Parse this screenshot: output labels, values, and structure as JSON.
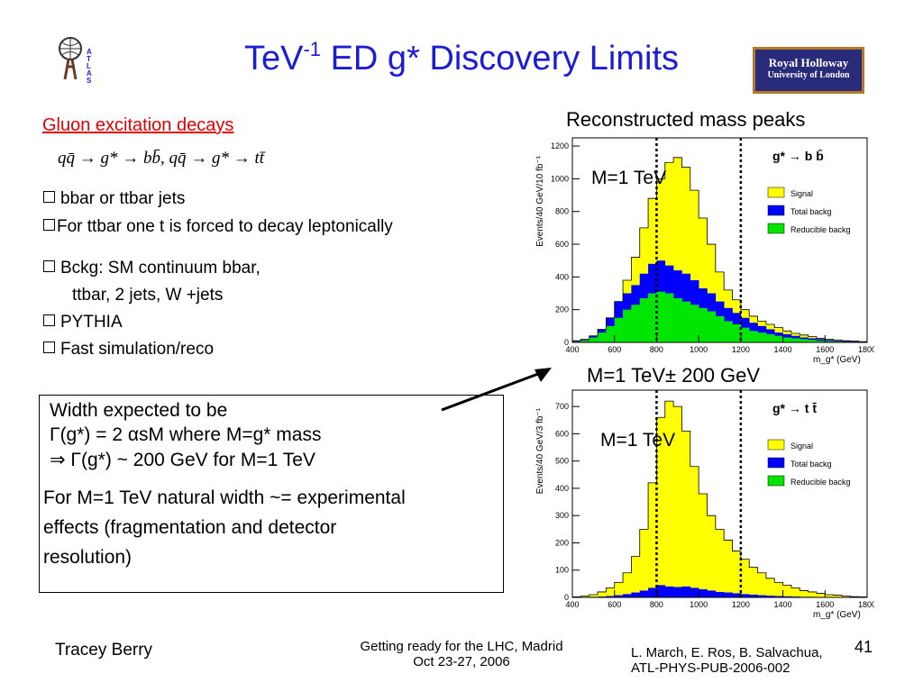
{
  "slide": {
    "title_main": "TeV",
    "title_sup": "-1",
    "title_rest": " ED g* Discovery Limits",
    "subheading": "Gluon excitation decays",
    "formula": "qq̄ → g* → bb̄, qq̄ → g* → tt̄",
    "bullets": [
      "bbar or ttbar jets",
      "For ttbar one t is forced to decay leptonically",
      "Bckg: SM continuum bbar,",
      "ttbar, 2 jets, W +jets",
      "PYTHIA",
      "Fast simulation/reco"
    ],
    "width_box": {
      "line1": "Width expected to be",
      "line2": "Γ(g*) = 2 αsM   where M=g* mass",
      "line3": "⇒ Γ(g*) ~ 200 GeV for M=1 TeV",
      "para": [
        "For M=1 TeV natural width  ~= experimental",
        "effects (fragmentation and detector",
        "resolution)"
      ]
    },
    "captions": {
      "top": "Reconstructed mass peaks",
      "middle": "M=1 TeV± 200 GeV",
      "peak_label": "M=1 TeV"
    },
    "footer": {
      "author": "Tracey Berry",
      "event_line1": "Getting ready for the LHC, Madrid",
      "event_line2": "Oct 23-27, 2006",
      "ref_line1": "L. March, E. Ros, B. Salvachua,",
      "ref_line2": "ATL-PHYS-PUB-2006-002",
      "page": "41"
    },
    "logos": {
      "atlas": "ATLAS",
      "rhul_line1": "Royal Holloway",
      "rhul_line2": "University of London"
    }
  },
  "colors": {
    "title": "#1c1cd6",
    "signal": "#ffff00",
    "total": "#0000ff",
    "reducible": "#00e600",
    "subhead": "#e00000"
  },
  "chart_data": [
    {
      "type": "bar",
      "title": "g* → b b̄",
      "xlabel": "m_g* (GeV)",
      "ylabel": "Events/40 GeV/10 fb⁻¹",
      "xlim": [
        400,
        1800
      ],
      "ylim": [
        0,
        1250
      ],
      "yticks": [
        0,
        200,
        400,
        600,
        800,
        1000,
        1200
      ],
      "xticks": [
        400,
        600,
        800,
        1000,
        1200,
        1400,
        1600,
        1800
      ],
      "bin_width": 40,
      "vlines": [
        800,
        1200
      ],
      "legend": [
        "Signal",
        "Total backg",
        "Reducible backg"
      ],
      "series": [
        {
          "name": "Signal",
          "values": [
            10,
            20,
            40,
            80,
            150,
            250,
            380,
            520,
            700,
            880,
            1000,
            1100,
            1130,
            1070,
            930,
            760,
            600,
            430,
            320,
            260,
            200,
            160,
            130,
            110,
            90,
            70,
            55,
            45,
            35,
            25,
            20,
            15,
            10,
            8,
            5
          ]
        },
        {
          "name": "Total backg",
          "values": [
            10,
            15,
            40,
            80,
            150,
            250,
            300,
            350,
            420,
            480,
            500,
            470,
            440,
            420,
            380,
            330,
            300,
            250,
            210,
            180,
            150,
            120,
            100,
            80,
            60,
            50,
            40,
            30,
            25,
            20,
            15,
            10,
            8,
            5,
            3
          ]
        },
        {
          "name": "Reducible backg",
          "values": [
            5,
            10,
            30,
            60,
            100,
            150,
            200,
            230,
            270,
            300,
            310,
            300,
            270,
            250,
            230,
            210,
            190,
            160,
            130,
            110,
            90,
            70,
            60,
            50,
            40,
            30,
            25,
            20,
            15,
            10,
            8,
            5,
            4,
            3,
            2
          ]
        }
      ]
    },
    {
      "type": "bar",
      "title": "g* → t t̄",
      "xlabel": "m_g* (GeV)",
      "ylabel": "Events/40 GeV/3 fb⁻¹",
      "xlim": [
        400,
        1800
      ],
      "ylim": [
        0,
        760
      ],
      "yticks": [
        0,
        100,
        200,
        300,
        400,
        500,
        600,
        700
      ],
      "xticks": [
        400,
        600,
        800,
        1000,
        1200,
        1400,
        1600,
        1800
      ],
      "bin_width": 40,
      "vlines": [
        800,
        1200
      ],
      "legend": [
        "Signal",
        "Total backg",
        "Reducible backg"
      ],
      "series": [
        {
          "name": "Signal",
          "values": [
            2,
            5,
            10,
            20,
            35,
            55,
            90,
            150,
            250,
            420,
            660,
            720,
            700,
            610,
            480,
            380,
            300,
            250,
            210,
            170,
            140,
            110,
            90,
            70,
            55,
            45,
            35,
            25,
            20,
            15,
            10,
            8,
            5,
            3,
            2
          ]
        },
        {
          "name": "Total backg",
          "values": [
            0,
            1,
            2,
            3,
            5,
            8,
            12,
            18,
            25,
            35,
            45,
            40,
            38,
            40,
            35,
            30,
            25,
            20,
            18,
            15,
            12,
            10,
            8,
            6,
            5,
            4,
            3,
            2,
            2,
            1,
            1,
            1,
            0,
            0,
            0
          ]
        },
        {
          "name": "Reducible backg",
          "values": [
            0,
            0,
            0,
            0,
            0,
            0,
            0,
            0,
            0,
            0,
            0,
            0,
            0,
            0,
            0,
            0,
            0,
            0,
            0,
            0,
            0,
            0,
            0,
            0,
            0,
            0,
            0,
            0,
            0,
            0,
            0,
            0,
            0,
            0,
            0
          ]
        }
      ]
    }
  ]
}
